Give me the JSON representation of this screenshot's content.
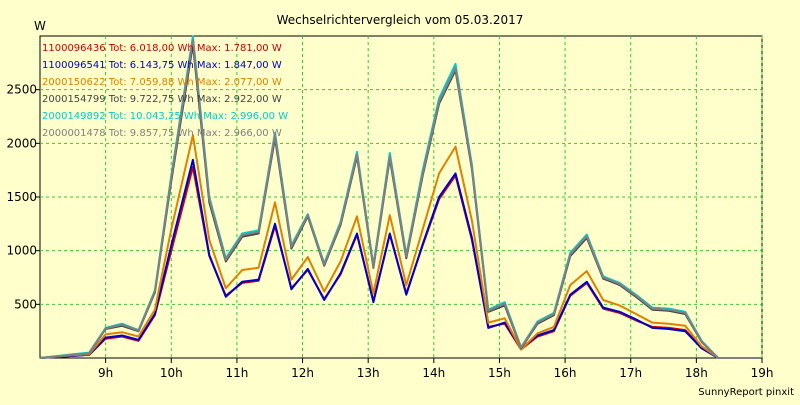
{
  "chart_data": {
    "type": "line",
    "title": "Wechselrichtervergleich vom 05.03.2017",
    "ylabel": "W",
    "xlabel": "",
    "footer": "SunnyReport pinxit",
    "xlim": [
      8.0,
      19.0
    ],
    "ylim": [
      0,
      3000
    ],
    "y_ticks": [
      500,
      1000,
      1500,
      2000,
      2500
    ],
    "x_ticks": [
      {
        "value": 9,
        "label": "9h"
      },
      {
        "value": 10,
        "label": "10h"
      },
      {
        "value": 11,
        "label": "11h"
      },
      {
        "value": 12,
        "label": "12h"
      },
      {
        "value": 13,
        "label": "13h"
      },
      {
        "value": 14,
        "label": "14h"
      },
      {
        "value": 15,
        "label": "15h"
      },
      {
        "value": 16,
        "label": "16h"
      },
      {
        "value": 17,
        "label": "17h"
      },
      {
        "value": 18,
        "label": "18h"
      },
      {
        "value": 19,
        "label": "19h"
      }
    ],
    "grid": true,
    "legend_position": "top-left",
    "x": [
      8.0,
      8.5,
      8.75,
      9.0,
      9.25,
      9.5,
      9.75,
      10.0,
      10.33,
      10.58,
      10.83,
      11.08,
      11.33,
      11.58,
      11.83,
      12.08,
      12.33,
      12.58,
      12.83,
      13.08,
      13.33,
      13.58,
      13.83,
      14.08,
      14.33,
      14.58,
      14.83,
      15.08,
      15.33,
      15.58,
      15.83,
      16.08,
      16.33,
      16.58,
      16.83,
      17.08,
      17.33,
      17.58,
      17.83,
      18.08,
      18.33,
      18.58,
      18.83,
      19.0
    ],
    "series": [
      {
        "name": "1100096436 Tot: 6.018,00 Wh Max: 1.781,00 W",
        "color": "#cc0000",
        "values": [
          0,
          20,
          30,
          180,
          200,
          160,
          400,
          1000,
          1780,
          950,
          580,
          700,
          720,
          1230,
          650,
          820,
          550,
          780,
          1150,
          530,
          1150,
          600,
          1050,
          1480,
          1700,
          1100,
          290,
          320,
          80,
          200,
          250,
          580,
          700,
          460,
          420,
          350,
          290,
          280,
          260,
          100,
          0,
          0,
          0,
          0
        ]
      },
      {
        "name": "1100096541 Tot: 6.143,75 Wh Max: 1.847,00 W",
        "color": "#0000cc",
        "values": [
          0,
          20,
          30,
          190,
          210,
          170,
          410,
          1050,
          1847,
          960,
          570,
          710,
          730,
          1250,
          640,
          830,
          540,
          790,
          1160,
          520,
          1160,
          590,
          1060,
          1500,
          1720,
          1120,
          280,
          330,
          90,
          210,
          260,
          590,
          710,
          470,
          430,
          360,
          280,
          270,
          250,
          90,
          0,
          0,
          0,
          0
        ]
      },
      {
        "name": "2000150622 Tot: 7.059,88 Wh Max: 2.077,00 W",
        "color": "#e08000",
        "values": [
          0,
          25,
          35,
          220,
          240,
          200,
          450,
          1200,
          2077,
          1100,
          650,
          820,
          840,
          1450,
          730,
          940,
          620,
          900,
          1320,
          600,
          1330,
          680,
          1200,
          1720,
          1970,
          1280,
          330,
          370,
          80,
          230,
          290,
          680,
          810,
          540,
          490,
          410,
          330,
          320,
          300,
          110,
          0,
          0,
          0,
          0
        ]
      },
      {
        "name": "2000154799 Tot: 9.722,75 Wh Max: 2.922,00 W",
        "color": "#444444",
        "values": [
          0,
          30,
          45,
          270,
          300,
          250,
          610,
          1650,
          2922,
          1450,
          900,
          1130,
          1160,
          2050,
          1020,
          1320,
          860,
          1240,
          1880,
          840,
          1860,
          930,
          1700,
          2370,
          2680,
          1760,
          430,
          490,
          90,
          320,
          400,
          950,
          1120,
          740,
          680,
          570,
          450,
          440,
          410,
          150,
          0,
          0,
          0,
          0
        ]
      },
      {
        "name": "2000149892 Tot: 10.043,25 Wh Max: 2.996,00 W",
        "color": "#00cccc",
        "values": [
          0,
          35,
          50,
          280,
          320,
          260,
          630,
          1700,
          2996,
          1500,
          930,
          1160,
          1190,
          2100,
          1050,
          1340,
          880,
          1270,
          1920,
          860,
          1910,
          960,
          1750,
          2420,
          2740,
          1800,
          450,
          520,
          100,
          340,
          420,
          980,
          1150,
          760,
          700,
          590,
          470,
          460,
          430,
          160,
          0,
          0,
          0,
          0
        ]
      },
      {
        "name": "2000001478 Tot: 9.857,75 Wh Max: 2.966,00 W",
        "color": "#808080",
        "values": [
          0,
          30,
          45,
          275,
          310,
          255,
          620,
          1680,
          2966,
          1480,
          915,
          1145,
          1175,
          2080,
          1035,
          1330,
          870,
          1255,
          1900,
          850,
          1880,
          945,
          1720,
          2390,
          2700,
          1780,
          440,
          505,
          95,
          330,
          410,
          965,
          1135,
          750,
          690,
          580,
          460,
          450,
          420,
          155,
          0,
          0,
          0,
          0
        ]
      }
    ]
  }
}
